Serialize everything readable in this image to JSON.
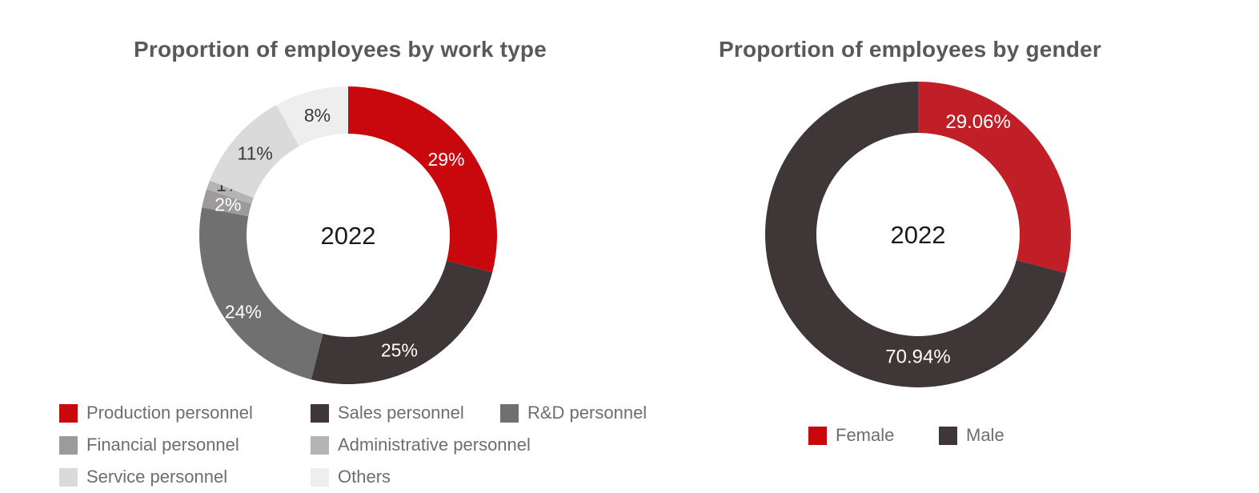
{
  "page": {
    "background": "#ffffff"
  },
  "styles": {
    "title_color": "#5a5858",
    "legend_text_color": "#6f6d6e",
    "center_label_color": "#1a1a1a",
    "dark_value_label_color": "#3b3a3a",
    "accent_red": "#c9080e",
    "dark_charcoal": "#3e3637"
  },
  "chart_data": [
    {
      "type": "donut",
      "title": "Proportion of employees by work type",
      "center_label": "2022",
      "legend_position": "bottom-left, 3 columns",
      "start_angle": "12 o'clock, clockwise",
      "slices": [
        {
          "name": "Production personnel",
          "value": 29,
          "display": "29%",
          "color": "#c9080e",
          "label_color": "#ffffff"
        },
        {
          "name": "Sales personnel",
          "value": 25,
          "display": "25%",
          "color": "#3e3637",
          "label_color": "#ffffff",
          "label_angle": 156,
          "label_r": 157
        },
        {
          "name": "R&D personnel",
          "value": 24,
          "display": "24%",
          "color": "#717071",
          "label_color": "#ffffff",
          "label_angle": 234,
          "label_r": 162
        },
        {
          "name": "Financial personnel",
          "value": 2,
          "display": "2%",
          "color": "#9c9a9b",
          "label_color": "#ffffff"
        },
        {
          "name": "Administrative personnel",
          "value": 1,
          "display": "1%",
          "color": "#b5b4b5",
          "label_color": "#3b3a3a",
          "label_angle": 293,
          "label_r": 161
        },
        {
          "name": "Service personnel",
          "value": 11,
          "display": "11%",
          "color": "#dbdada",
          "label_color": "#3b3a3a"
        },
        {
          "name": "Others",
          "value": 8,
          "display": "8%",
          "color": "#efeeee",
          "label_color": "#3b3a3a"
        }
      ]
    },
    {
      "type": "donut",
      "title": "Proportion of employees by gender",
      "center_label": "2022",
      "legend_position": "bottom-center",
      "start_angle": "12 o'clock, clockwise",
      "slices": [
        {
          "name": "Female",
          "value": 29.06,
          "display": "29.06%",
          "color": "#c11f27",
          "legend_color": "#c9080e",
          "label_color": "#ffffff",
          "label_angle": 28,
          "label_r": 160
        },
        {
          "name": "Male",
          "value": 70.94,
          "display": "70.94%",
          "color": "#3e3637",
          "label_color": "#ffffff",
          "label_angle": 180,
          "label_r": 152
        }
      ]
    }
  ]
}
